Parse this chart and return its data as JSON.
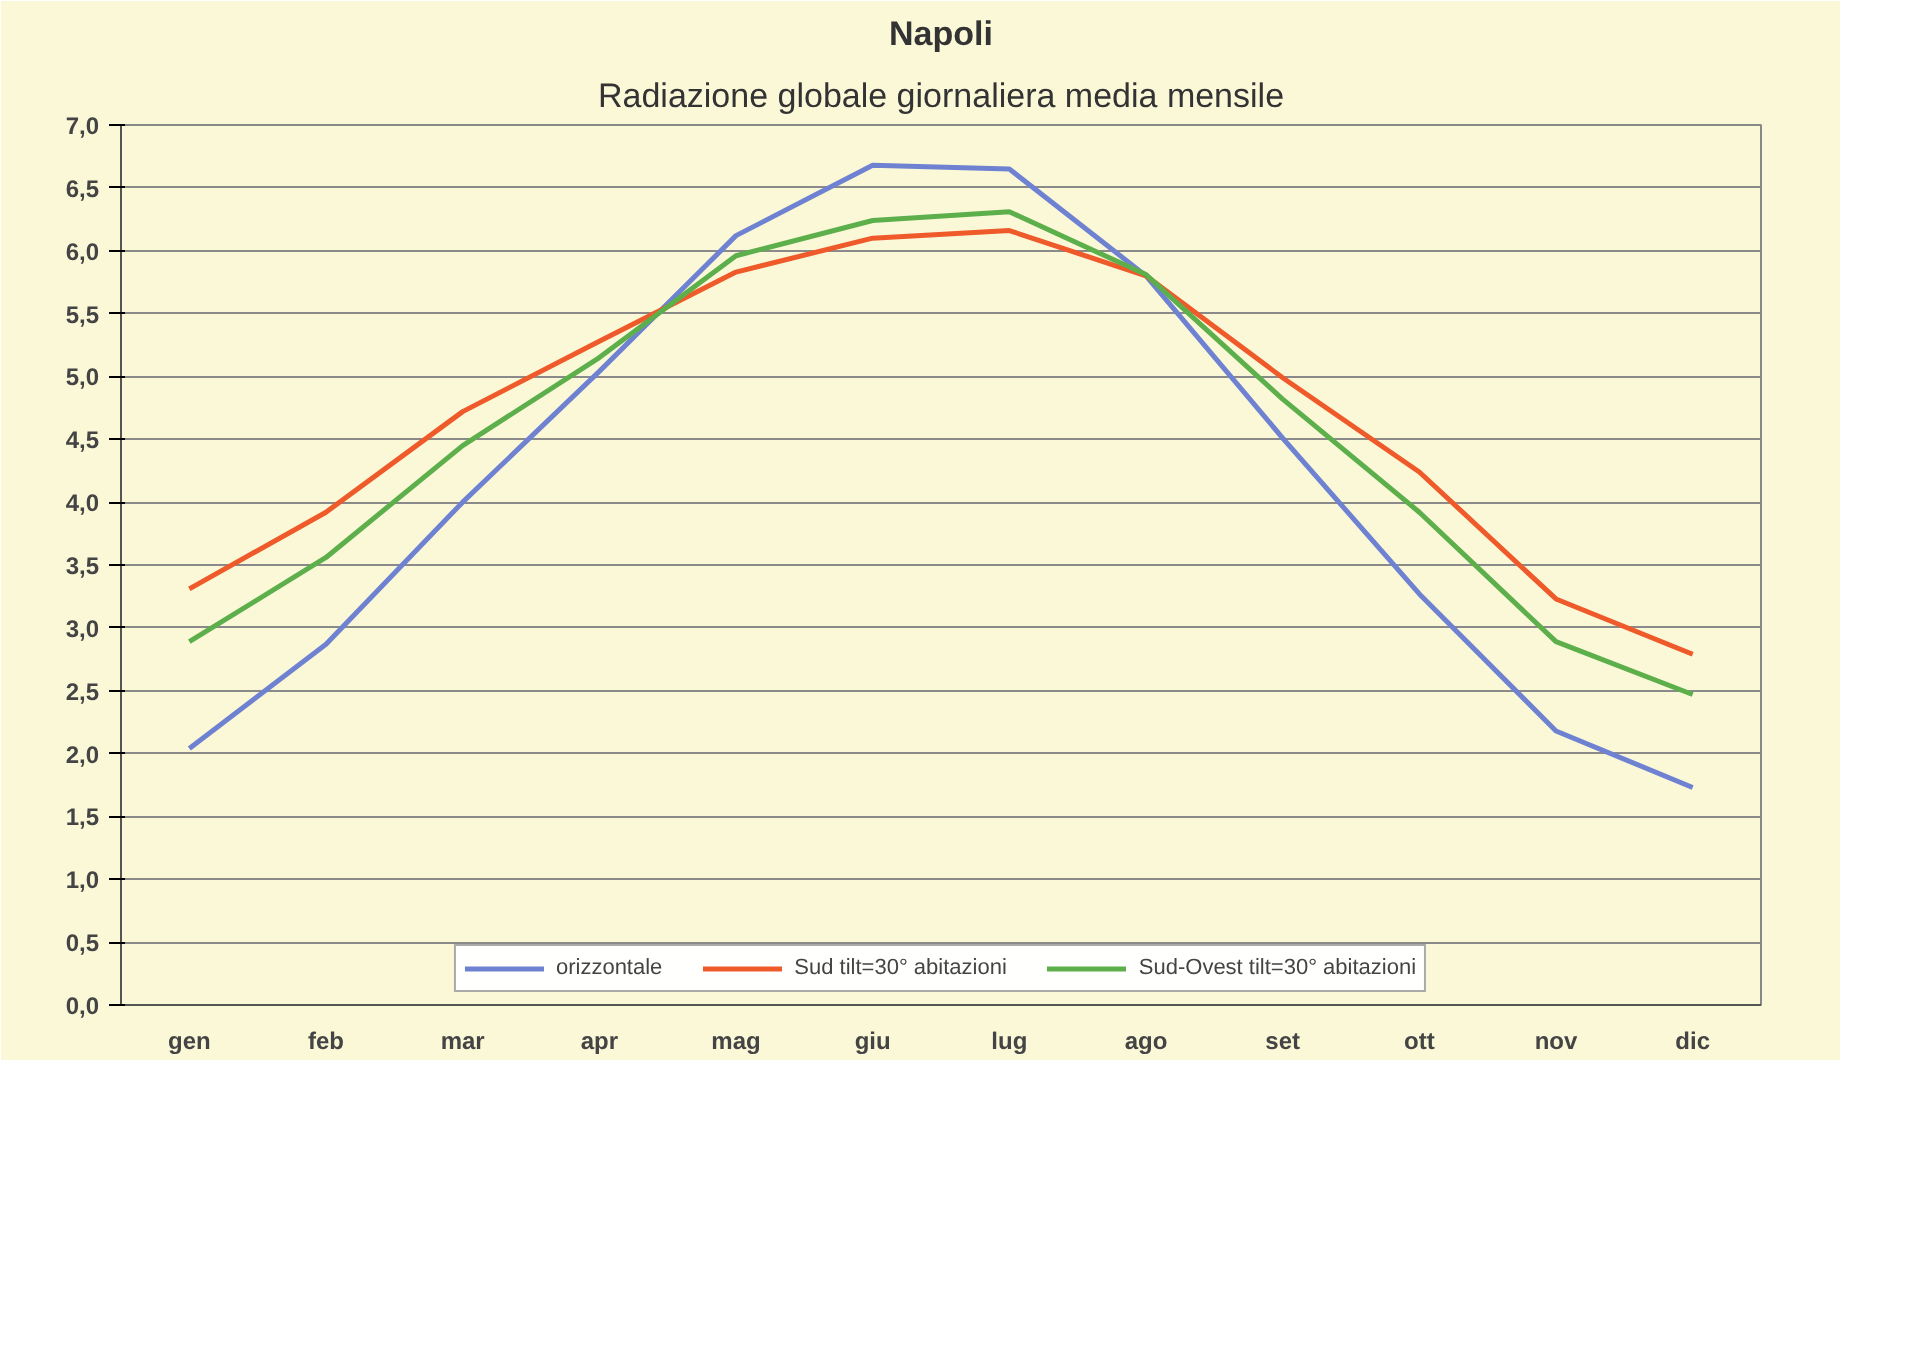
{
  "chart_data": {
    "type": "line",
    "title": "Napoli",
    "subtitle": "Radiazione globale giornaliera media mensile",
    "categories": [
      "gen",
      "feb",
      "mar",
      "apr",
      "mag",
      "giu",
      "lug",
      "ago",
      "set",
      "ott",
      "nov",
      "dic"
    ],
    "series": [
      {
        "name": "orizzontale",
        "color": "#6f82d2",
        "values": [
          2.04,
          2.87,
          4.0,
          5.04,
          6.12,
          6.68,
          6.65,
          5.8,
          4.51,
          3.27,
          2.18,
          1.73
        ]
      },
      {
        "name": "Sud tilt=30° abitazioni",
        "color": "#ef5a2a",
        "values": [
          3.31,
          3.92,
          4.72,
          5.28,
          5.83,
          6.1,
          6.16,
          5.8,
          4.99,
          4.24,
          3.23,
          2.79
        ]
      },
      {
        "name": "Sud-Ovest tilt=30° abitazioni",
        "color": "#5daf4b",
        "values": [
          2.89,
          3.56,
          4.45,
          5.15,
          5.96,
          6.24,
          6.31,
          5.81,
          4.82,
          3.92,
          2.89,
          2.47
        ]
      }
    ],
    "ylim": [
      0,
      7
    ],
    "yticks": [
      {
        "value": 0,
        "label": "0,0"
      },
      {
        "value": 0.5,
        "label": "0,5"
      },
      {
        "value": 1,
        "label": "1,0"
      },
      {
        "value": 1.5,
        "label": "1,5"
      },
      {
        "value": 2,
        "label": "2,0"
      },
      {
        "value": 2.5,
        "label": "2,5"
      },
      {
        "value": 3,
        "label": "3,0"
      },
      {
        "value": 3.5,
        "label": "3,5"
      },
      {
        "value": 4,
        "label": "4,0"
      },
      {
        "value": 4.5,
        "label": "4,5"
      },
      {
        "value": 5,
        "label": "5,0"
      },
      {
        "value": 5.5,
        "label": "5,5"
      },
      {
        "value": 6,
        "label": "6,0"
      },
      {
        "value": 6.5,
        "label": "6,5"
      },
      {
        "value": 7,
        "label": "7,0"
      }
    ],
    "grid": "y",
    "legend": "bottom",
    "marker": "none",
    "line_style": "solid"
  }
}
